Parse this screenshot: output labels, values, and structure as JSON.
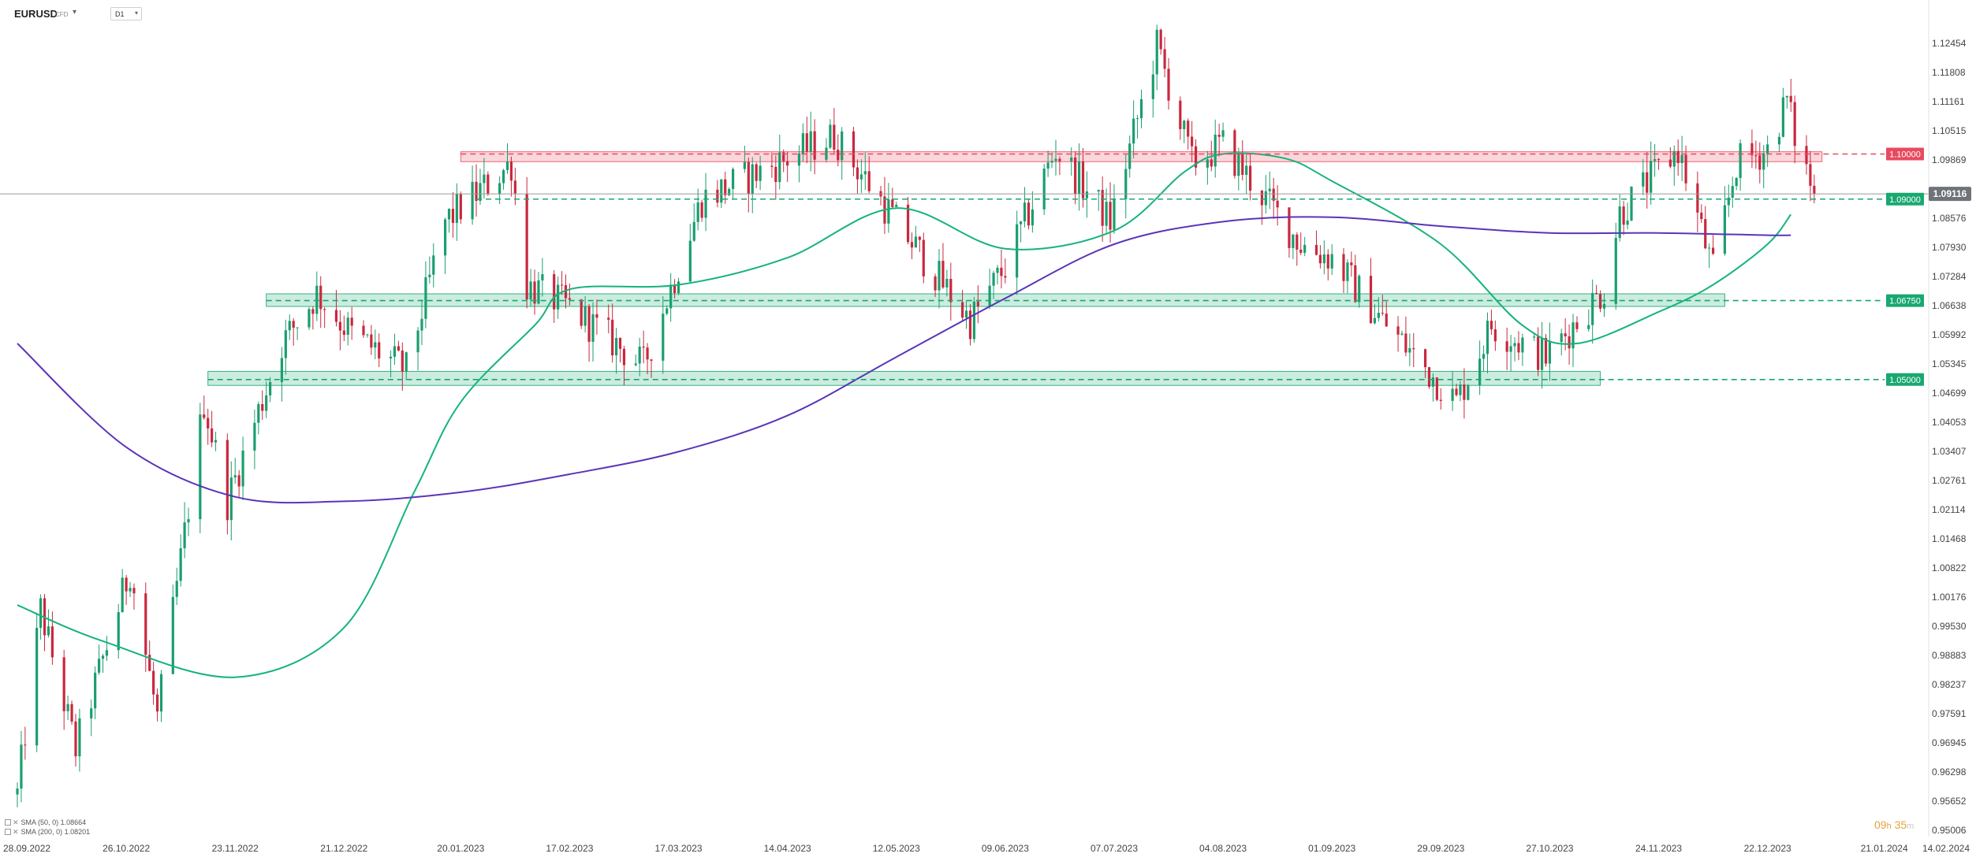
{
  "header": {
    "symbol": "EURUSD",
    "symbol_type": "CFD",
    "timeframe": "D1"
  },
  "timer": {
    "hours": "09",
    "h_unit": "h",
    "minutes": "35",
    "m_unit": "m"
  },
  "legend": [
    {
      "label": "SMA (50, 0)",
      "value": "1.08664"
    },
    {
      "label": "SMA (200, 0)",
      "value": "1.08201"
    }
  ],
  "colors": {
    "up_candle": "#1a9e6e",
    "down_candle": "#c9283e",
    "sma50": "#16b37c",
    "sma200": "#5b34b8",
    "resistance": "#e84a5f",
    "support": "#18a870",
    "price_marker": "#6e7379"
  },
  "chart_data": {
    "type": "candlestick",
    "symbol": "EURUSD",
    "timeframe": "D1",
    "x_axis_labels": [
      "28.09.2022",
      "26.10.2022",
      "23.11.2022",
      "21.12.2022",
      "20.01.2023",
      "17.02.2023",
      "17.03.2023",
      "14.04.2023",
      "12.05.2023",
      "09.06.2023",
      "07.07.2023",
      "04.08.2023",
      "01.09.2023",
      "29.09.2023",
      "27.10.2023",
      "24.11.2023",
      "22.12.2023",
      "21.01.2024",
      "14.02.2024"
    ],
    "x_ticks": [
      "2022-09-28",
      "2022-10-26",
      "2022-11-23",
      "2022-12-21",
      "2023-01-20",
      "2023-02-17",
      "2023-03-17",
      "2023-04-14",
      "2023-05-12",
      "2023-06-09",
      "2023-07-07",
      "2023-08-04",
      "2023-09-01",
      "2023-09-29",
      "2023-10-27",
      "2023-11-24",
      "2023-12-22",
      "2024-01-21",
      "2024-02-14"
    ],
    "y_axis_labels": [
      "1.12454",
      "1.11808",
      "1.11161",
      "1.10515",
      "1.09869",
      "1.08576",
      "1.07930",
      "1.07284",
      "1.06638",
      "1.05992",
      "1.05345",
      "1.04699",
      "1.04053",
      "1.03407",
      "1.02761",
      "1.02114",
      "1.01468",
      "1.00822",
      "1.00176",
      "0.99530",
      "0.98883",
      "0.98237",
      "0.97591",
      "0.96945",
      "0.96298",
      "0.95652",
      "0.95006"
    ],
    "ylim": [
      0.9484,
      1.1264
    ],
    "current_price": "1.09116",
    "grid": false,
    "levels": [
      {
        "label": "1.10000",
        "kind": "resistance",
        "zone": [
          1.0983,
          1.1005
        ],
        "zone_start": "2023-01-20",
        "zone_end": "2024-01-05"
      },
      {
        "label": "1.09000",
        "kind": "support",
        "zone_start": "2023-01-24"
      },
      {
        "label": "1.06750",
        "kind": "support",
        "zone": [
          1.0662,
          1.069
        ],
        "zone_start": "2022-12-01",
        "zone_end": "2023-12-11"
      },
      {
        "label": "1.05000",
        "kind": "support",
        "zone": [
          1.0487,
          1.0518
        ],
        "zone_start": "2022-11-16",
        "zone_end": "2023-11-09"
      }
    ],
    "series": [
      {
        "name": "SMA (50, 0)",
        "value": "1.08664",
        "points": [
          [
            "2022-09-28",
            1.0
          ],
          [
            "2022-10-20",
            0.992
          ],
          [
            "2022-11-23",
            0.984
          ],
          [
            "2022-12-21",
            0.995
          ],
          [
            "2023-01-08",
            1.025
          ],
          [
            "2023-01-20",
            1.045
          ],
          [
            "2023-02-08",
            1.062
          ],
          [
            "2023-02-17",
            1.07
          ],
          [
            "2023-03-17",
            1.071
          ],
          [
            "2023-04-14",
            1.077
          ],
          [
            "2023-05-12",
            1.088
          ],
          [
            "2023-06-09",
            1.079
          ],
          [
            "2023-07-07",
            1.083
          ],
          [
            "2023-07-25",
            1.096
          ],
          [
            "2023-08-04",
            1.1
          ],
          [
            "2023-08-20",
            1.099
          ],
          [
            "2023-09-01",
            1.094
          ],
          [
            "2023-09-29",
            1.08
          ],
          [
            "2023-10-20",
            1.062
          ],
          [
            "2023-11-03",
            1.058
          ],
          [
            "2023-11-24",
            1.065
          ],
          [
            "2023-12-08",
            1.071
          ],
          [
            "2023-12-22",
            1.08
          ],
          [
            "2023-12-28",
            1.0866
          ]
        ]
      },
      {
        "name": "SMA (200, 0)",
        "value": "1.08201",
        "points": [
          [
            "2022-09-28",
            1.058
          ],
          [
            "2022-10-26",
            1.035
          ],
          [
            "2022-11-23",
            1.024
          ],
          [
            "2022-12-21",
            1.023
          ],
          [
            "2023-01-20",
            1.025
          ],
          [
            "2023-02-17",
            1.029
          ],
          [
            "2023-03-17",
            1.034
          ],
          [
            "2023-04-14",
            1.042
          ],
          [
            "2023-05-12",
            1.055
          ],
          [
            "2023-06-09",
            1.068
          ],
          [
            "2023-07-07",
            1.08
          ],
          [
            "2023-08-04",
            1.085
          ],
          [
            "2023-09-01",
            1.086
          ],
          [
            "2023-09-29",
            1.084
          ],
          [
            "2023-10-27",
            1.0825
          ],
          [
            "2023-11-24",
            1.0825
          ],
          [
            "2023-12-22",
            1.082
          ],
          [
            "2023-12-28",
            1.082
          ]
        ]
      }
    ],
    "ohlc_path": [
      [
        "2022-09-28",
        0.958
      ],
      [
        "2022-10-04",
        0.999
      ],
      [
        "2022-10-13",
        0.968
      ],
      [
        "2022-10-27",
        1.008
      ],
      [
        "2022-11-03",
        0.975
      ],
      [
        "2022-11-15",
        1.045
      ],
      [
        "2022-11-21",
        1.023
      ],
      [
        "2022-12-05",
        1.058
      ],
      [
        "2022-12-14",
        1.069
      ],
      [
        "2022-12-23",
        1.06
      ],
      [
        "2023-01-06",
        1.052
      ],
      [
        "2023-01-16",
        1.085
      ],
      [
        "2023-02-02",
        1.098
      ],
      [
        "2023-02-06",
        1.071
      ],
      [
        "2023-02-17",
        1.066
      ],
      [
        "2023-03-08",
        1.053
      ],
      [
        "2023-03-23",
        1.09
      ],
      [
        "2023-04-14",
        1.099
      ],
      [
        "2023-04-26",
        1.104
      ],
      [
        "2023-05-12",
        1.085
      ],
      [
        "2023-05-31",
        1.063
      ],
      [
        "2023-06-09",
        1.075
      ],
      [
        "2023-06-22",
        1.101
      ],
      [
        "2023-07-06",
        1.085
      ],
      [
        "2023-07-18",
        1.124
      ],
      [
        "2023-07-27",
        1.098
      ],
      [
        "2023-08-04",
        1.102
      ],
      [
        "2023-08-24",
        1.08
      ],
      [
        "2023-09-01",
        1.077
      ],
      [
        "2023-09-14",
        1.063
      ],
      [
        "2023-10-03",
        1.045
      ],
      [
        "2023-10-12",
        1.062
      ],
      [
        "2023-10-26",
        1.055
      ],
      [
        "2023-11-10",
        1.07
      ],
      [
        "2023-11-14",
        1.087
      ],
      [
        "2023-11-29",
        1.101
      ],
      [
        "2023-12-08",
        1.074
      ],
      [
        "2023-12-14",
        1.098
      ],
      [
        "2023-12-22",
        1.101
      ],
      [
        "2023-12-27",
        1.112
      ],
      [
        "2023-12-29",
        1.104
      ],
      [
        "2024-01-03",
        1.0912
      ]
    ]
  }
}
